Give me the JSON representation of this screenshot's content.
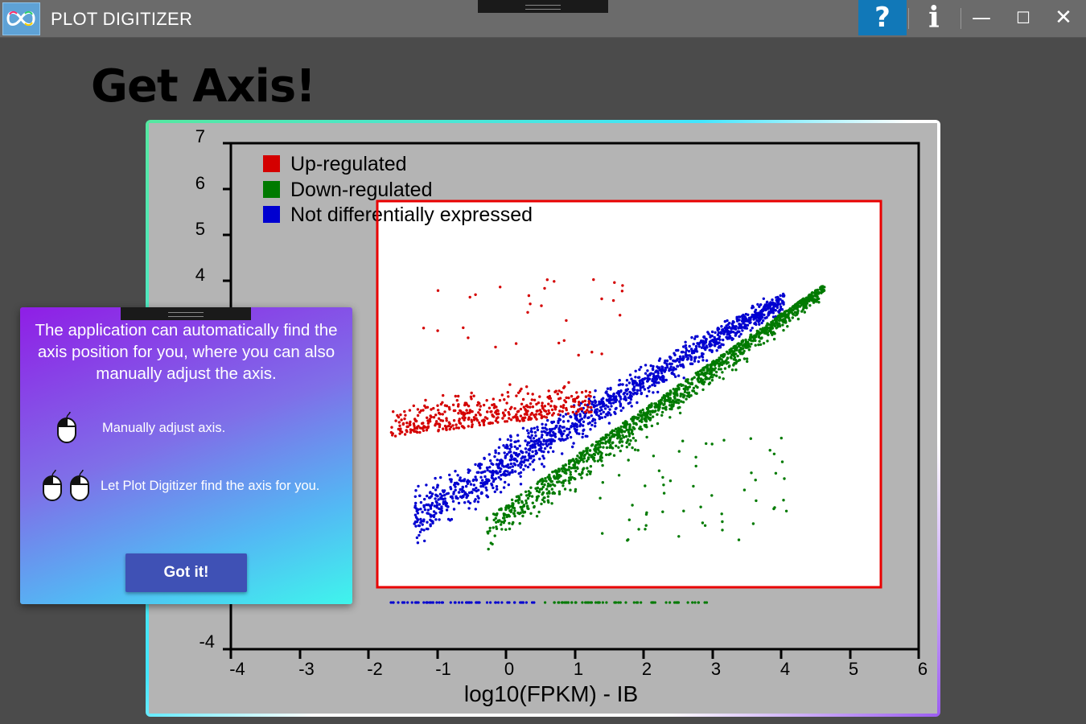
{
  "titlebar": {
    "title": "PLOT DIGITIZER",
    "logo_icon": "infinity-logo-icon",
    "help_label": "?",
    "info_label": "i",
    "minimize_label": "—",
    "maximize_label": "☐",
    "close_label": "✕",
    "help_color": "#1178b8"
  },
  "page": {
    "heading": "Get Axis!"
  },
  "plot_image": {
    "y_ticks": [
      "7",
      "6",
      "5",
      "4",
      "-4"
    ],
    "x_ticks": [
      "-4",
      "-3",
      "-2",
      "-1",
      "0",
      "1",
      "2",
      "3",
      "4",
      "5",
      "6"
    ],
    "xlabel": "log10(FPKM) - IB",
    "legend": [
      {
        "label": "Up-regulated",
        "color": "#d40000"
      },
      {
        "label": "Down-regulated",
        "color": "#007a00"
      },
      {
        "label": "Not differentially expressed",
        "color": "#0000d0"
      }
    ],
    "selection_box_color": "#e80000"
  },
  "popup": {
    "message": "The application can automatically find the axis position for you, where you can also manually adjust the axis.",
    "tip_single_click": "Manually adjust axis.",
    "tip_double_click": "Let Plot Digitizer find the axis for you.",
    "mouse_icon": "mouse-click-icon",
    "got_it_label": "Got it!"
  }
}
